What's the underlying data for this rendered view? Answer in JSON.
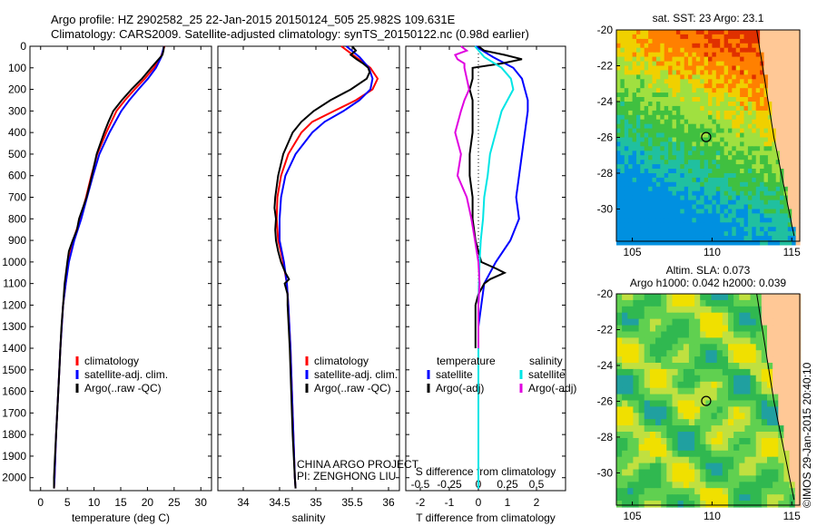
{
  "header": {
    "line1": "Argo profile: HZ 2902582_25 22-Jan-2015 20150124_505 25.982S 109.631E",
    "line2": "Climatology: CARS2009. Satellite-adjusted climatology: synTS_20150122.nc (0.98d earlier)"
  },
  "colors": {
    "red": "#ff0000",
    "blue": "#0000ff",
    "black": "#000000",
    "cyan": "#00e5e5",
    "magenta": "#e000e0"
  },
  "chart_data": [
    {
      "type": "line",
      "id": "temperature",
      "xlabel": "temperature (deg C)",
      "xlim": [
        -2,
        32
      ],
      "ylim": [
        2060,
        0
      ],
      "xticks": [
        0,
        5,
        10,
        15,
        20,
        25,
        30
      ],
      "yticks": [
        0,
        100,
        200,
        300,
        400,
        500,
        600,
        700,
        800,
        900,
        1000,
        1100,
        1200,
        1300,
        1400,
        1500,
        1600,
        1700,
        1800,
        1900,
        2000
      ],
      "legend": [
        "climatology",
        "satellite-adj. clim.",
        "Argo(..raw -QC)"
      ],
      "series": [
        {
          "name": "climatology",
          "color": "red",
          "depth": [
            0,
            50,
            100,
            150,
            200,
            250,
            300,
            400,
            500,
            600,
            700,
            800,
            900,
            1000,
            1100,
            1200,
            1400,
            1600,
            1800,
            2000,
            2050
          ],
          "values": [
            23.2,
            22.5,
            21.2,
            19.5,
            17.6,
            15.8,
            14.2,
            12.3,
            10.6,
            9.5,
            8.5,
            7.4,
            6.1,
            5.2,
            4.7,
            4.2,
            3.7,
            3.3,
            2.9,
            2.6,
            2.5
          ]
        },
        {
          "name": "satellite-adj. clim.",
          "color": "blue",
          "depth": [
            0,
            50,
            100,
            150,
            200,
            250,
            300,
            400,
            500,
            600,
            700,
            800,
            900,
            1000,
            1100,
            1200,
            1400,
            1600,
            1800,
            2000,
            2050
          ],
          "values": [
            23.1,
            22.6,
            21.6,
            20.1,
            18.3,
            16.6,
            15.1,
            12.9,
            11.0,
            9.8,
            8.7,
            7.6,
            6.3,
            5.3,
            4.7,
            4.2,
            3.7,
            3.3,
            2.9,
            2.6,
            2.5
          ]
        },
        {
          "name": "Argo(..raw -QC)",
          "color": "black",
          "depth": [
            0,
            20,
            40,
            60,
            80,
            100,
            150,
            200,
            250,
            300,
            350,
            400,
            500,
            600,
            700,
            800,
            850,
            900,
            950,
            1000,
            1100,
            1200,
            1300,
            1400,
            1500,
            1600,
            1700,
            1800,
            1900,
            2000,
            2050
          ],
          "values": [
            23.1,
            23.0,
            22.8,
            22.1,
            21.4,
            20.7,
            19.0,
            17.0,
            15.2,
            13.6,
            12.7,
            11.9,
            10.5,
            9.6,
            8.6,
            7.2,
            6.8,
            6.0,
            5.3,
            5.0,
            4.5,
            4.2,
            3.9,
            3.7,
            3.5,
            3.3,
            3.1,
            2.9,
            2.7,
            2.5,
            2.5
          ]
        }
      ]
    },
    {
      "type": "line",
      "id": "salinity",
      "xlabel": "salinity",
      "xlim": [
        33.65,
        36.15
      ],
      "ylim": [
        2060,
        0
      ],
      "xticks": [
        34,
        34.5,
        35,
        35.5,
        36
      ],
      "legend": [
        "climatology",
        "satellite-adj. clim.",
        "Argo(..raw -QC)"
      ],
      "annotation": [
        "CHINA ARGO PROJECT",
        "PI: ZENGHONG LIU"
      ],
      "series": [
        {
          "name": "climatology",
          "color": "red",
          "depth": [
            0,
            50,
            100,
            150,
            200,
            250,
            300,
            350,
            400,
            500,
            600,
            700,
            800,
            900,
            1000,
            1100,
            1200,
            1400,
            1600,
            1800,
            2000,
            2050
          ],
          "values": [
            35.35,
            35.55,
            35.75,
            35.85,
            35.78,
            35.55,
            35.25,
            34.95,
            34.8,
            34.62,
            34.52,
            34.47,
            34.46,
            34.48,
            34.55,
            34.6,
            34.62,
            34.65,
            34.67,
            34.69,
            34.71,
            34.72
          ]
        },
        {
          "name": "satellite-adj. clim.",
          "color": "blue",
          "depth": [
            0,
            50,
            100,
            150,
            200,
            250,
            300,
            350,
            400,
            500,
            600,
            700,
            800,
            900,
            1000,
            1100,
            1200,
            1400,
            1600,
            1800,
            2000,
            2050
          ],
          "values": [
            35.42,
            35.6,
            35.73,
            35.78,
            35.75,
            35.6,
            35.38,
            35.12,
            34.95,
            34.72,
            34.58,
            34.52,
            34.5,
            34.5,
            34.56,
            34.6,
            34.62,
            34.65,
            34.67,
            34.69,
            34.71,
            34.72
          ]
        },
        {
          "name": "Argo(..raw -QC)",
          "color": "black",
          "depth": [
            0,
            20,
            40,
            60,
            80,
            100,
            120,
            150,
            200,
            250,
            300,
            350,
            400,
            500,
            600,
            700,
            750,
            800,
            850,
            900,
            950,
            1000,
            1050,
            1080,
            1100,
            1150,
            1200,
            1400,
            1600,
            1800,
            2000,
            2050
          ],
          "values": [
            35.5,
            35.55,
            35.48,
            35.56,
            35.65,
            35.72,
            35.74,
            35.7,
            35.48,
            35.2,
            34.97,
            34.8,
            34.68,
            34.55,
            34.48,
            34.44,
            34.43,
            34.45,
            34.44,
            34.45,
            34.48,
            34.52,
            34.58,
            34.63,
            34.57,
            34.61,
            34.61,
            34.64,
            34.66,
            34.68,
            34.71,
            34.72
          ]
        }
      ]
    },
    {
      "type": "line",
      "id": "difference",
      "xlabel": "T difference from climatology",
      "xlabel2": "S difference from climatology",
      "xlim": [
        -2.5,
        3.0
      ],
      "ylim": [
        2060,
        0
      ],
      "xticks": [
        -2,
        -1,
        0,
        1,
        2
      ],
      "sticks": [
        -0.5,
        -0.25,
        0,
        0.25,
        0.5
      ],
      "legend_headers": [
        "temperature",
        "salinity"
      ],
      "legend": [
        "satellite",
        "Argo(-adj)",
        "satellite",
        "Argo(-adj)"
      ],
      "series": [
        {
          "name": "satellite",
          "color": "blue",
          "depth": [
            0,
            50,
            100,
            150,
            200,
            250,
            300,
            400,
            500,
            600,
            700,
            800,
            900,
            1000,
            1100,
            1200,
            1300,
            1400,
            1500,
            1600,
            1800,
            2000,
            2050
          ],
          "values": [
            -0.1,
            0.5,
            1.2,
            1.5,
            1.6,
            1.7,
            1.7,
            1.6,
            1.5,
            1.4,
            1.3,
            1.4,
            1.1,
            0.6,
            0.2,
            0.1,
            0.0,
            0.0,
            0.0,
            0.0,
            0.0,
            0.0,
            0.0
          ]
        },
        {
          "name": "Argo(-adj)",
          "color": "black",
          "depth": [
            0,
            20,
            40,
            60,
            80,
            100,
            150,
            200,
            250,
            300,
            400,
            500,
            600,
            700,
            800,
            900,
            1000,
            1030,
            1050,
            1080,
            1100,
            1150,
            1200,
            1300,
            1400
          ],
          "values": [
            0.0,
            0.2,
            0.9,
            1.5,
            0.8,
            -0.2,
            -0.2,
            -0.3,
            -0.2,
            -0.2,
            -0.2,
            -0.3,
            -0.3,
            -0.2,
            -0.2,
            -0.1,
            0.1,
            0.6,
            0.9,
            0.4,
            0.2,
            0.0,
            -0.1,
            -0.1,
            -0.1
          ]
        },
        {
          "name": "satellite (salinity)",
          "color": "cyan",
          "depth": [
            0,
            50,
            100,
            150,
            200,
            250,
            300,
            400,
            500,
            600,
            700,
            800,
            900,
            1000,
            1200,
            1400,
            1600,
            1800,
            2000,
            2050
          ],
          "values": [
            -0.03,
            0.05,
            0.2,
            0.28,
            0.3,
            0.25,
            0.2,
            0.15,
            0.1,
            0.08,
            0.05,
            0.04,
            0.02,
            0.01,
            0.0,
            0.0,
            0.0,
            0.0,
            0.0,
            0.0
          ]
        },
        {
          "name": "Argo(-adj) (salinity)",
          "color": "magenta",
          "depth": [
            0,
            20,
            40,
            60,
            80,
            100,
            150,
            200,
            250,
            300,
            400,
            500,
            600,
            700,
            800,
            900,
            1000,
            1100,
            1200,
            1300,
            1400
          ],
          "values": [
            -0.15,
            -0.1,
            -0.2,
            -0.18,
            -0.12,
            -0.12,
            -0.1,
            -0.08,
            -0.12,
            -0.15,
            -0.2,
            -0.15,
            -0.18,
            -0.1,
            -0.06,
            -0.03,
            0.0,
            0.01,
            0.0,
            0.0,
            0.0
          ]
        }
      ]
    },
    {
      "type": "heatmap",
      "id": "sst_map",
      "title": "sat. SST: 23 Argo: 23.1",
      "xlim": [
        104,
        115.5
      ],
      "ylim": [
        -31.8,
        -20
      ],
      "xticks": [
        105,
        110,
        115
      ],
      "yticks": [
        -20,
        -22,
        -24,
        -26,
        -28,
        -30
      ],
      "marker": [
        109.631,
        -25.982
      ]
    },
    {
      "type": "heatmap",
      "id": "sla_map",
      "title": "Altim. SLA: 0.073",
      "title2": "Argo h1000: 0.042 h2000: 0.039",
      "xlim": [
        104,
        115.5
      ],
      "ylim": [
        -31.8,
        -20
      ],
      "xticks": [
        105,
        110,
        115
      ],
      "yticks": [
        -20,
        -22,
        -24,
        -26,
        -28,
        -30
      ],
      "marker": [
        109.631,
        -25.982
      ]
    }
  ],
  "credit": "©IMOS 29-Jan-2015 20:40:10"
}
